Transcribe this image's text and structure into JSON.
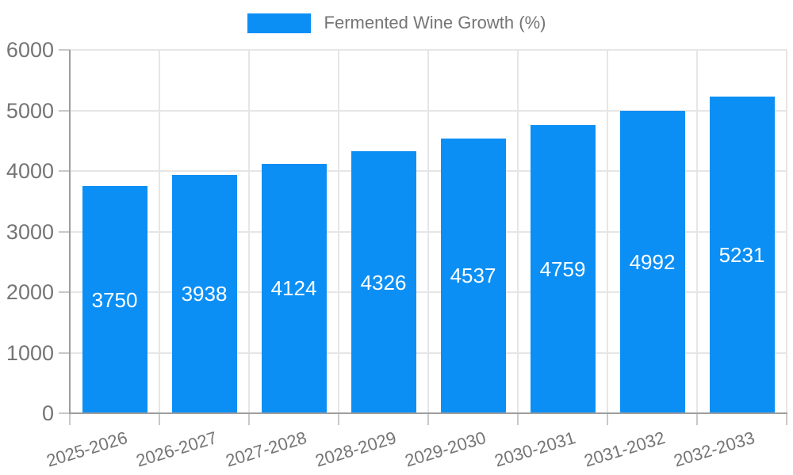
{
  "legend": {
    "label": "Fermented Wine Growth (%)"
  },
  "chart_data": {
    "type": "bar",
    "title": "Fermented Wine Growth (%)",
    "series_name": "Fermented Wine Growth (%)",
    "categories": [
      "2025-2026",
      "2026-2027",
      "2027-2028",
      "2028-2029",
      "2029-2030",
      "2030-2031",
      "2031-2032",
      "2032-2033"
    ],
    "values": [
      3750,
      3938,
      4124,
      4326,
      4537,
      4759,
      4992,
      5231
    ],
    "bar_value_labels": [
      "3750",
      "3938",
      "4124",
      "4326",
      "4537",
      "4759",
      "4992",
      "5231"
    ],
    "xlabel": "",
    "ylabel": "",
    "ylim": [
      0,
      6000
    ],
    "yticks": [
      0,
      1000,
      2000,
      3000,
      4000,
      5000,
      6000
    ],
    "ytick_labels": [
      "0",
      "1000",
      "2000",
      "3000",
      "4000",
      "5000",
      "6000"
    ],
    "grid": true,
    "legend_position": "top-center",
    "x_label_rotation_deg": -17,
    "colors": {
      "bar": "#0b8ff5",
      "bar_label_text": "#ffffff",
      "axis_text": "#757575",
      "gridline": "#e6e6e6",
      "axis_line": "#9e9e9e",
      "tick": "#c8c8c8",
      "background": "#ffffff"
    }
  }
}
